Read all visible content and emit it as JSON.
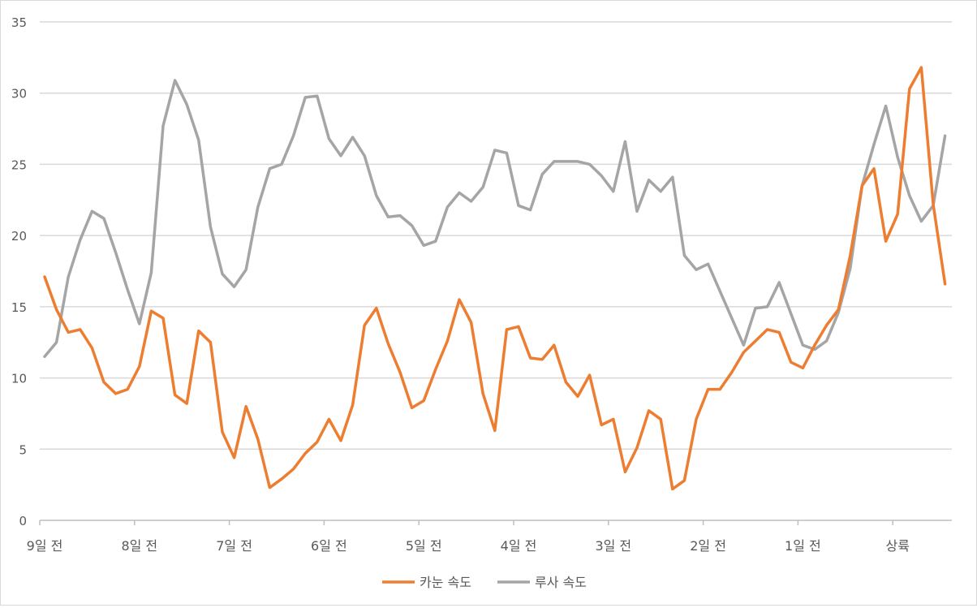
{
  "chart_data": {
    "type": "line",
    "title": "",
    "xlabel": "",
    "ylabel": "",
    "ylim": [
      0,
      35
    ],
    "yticks": [
      0,
      5,
      10,
      15,
      20,
      25,
      30,
      35
    ],
    "grid": true,
    "legend_position": "bottom",
    "x_tick_labels": [
      "9일 전",
      "8일 전",
      "7일 전",
      "6일 전",
      "5일 전",
      "4일 전",
      "3일 전",
      "2일 전",
      "1일 전",
      "상륙"
    ],
    "x_tick_positions": [
      0,
      8,
      16,
      24,
      32,
      40,
      48,
      56,
      64,
      72
    ],
    "series": [
      {
        "name": "카눈 속도",
        "color": "#ed7d31",
        "values": [
          17.1,
          14.8,
          13.2,
          13.4,
          12.1,
          9.7,
          8.9,
          9.2,
          10.8,
          14.7,
          14.2,
          8.8,
          8.2,
          13.3,
          12.5,
          6.2,
          4.4,
          8.0,
          5.7,
          2.3,
          2.9,
          3.6,
          4.7,
          5.5,
          7.1,
          5.6,
          8.1,
          13.7,
          14.9,
          12.4,
          10.4,
          7.9,
          8.4,
          10.6,
          12.6,
          15.5,
          13.9,
          8.9,
          6.3,
          13.4,
          13.6,
          11.4,
          11.3,
          12.3,
          9.7,
          8.7,
          10.2,
          6.7,
          7.1,
          3.4,
          5.1,
          7.7,
          7.1,
          2.2,
          2.8,
          7.1,
          9.2,
          9.2,
          10.4,
          11.8,
          12.6,
          13.4,
          13.2,
          11.1,
          10.7,
          12.3,
          13.7,
          14.8,
          18.6,
          23.5,
          24.7,
          19.6,
          21.5,
          30.3,
          31.8,
          22.2,
          16.6
        ]
      },
      {
        "name": "루사 속도",
        "color": "#a5a5a5",
        "values": [
          11.5,
          12.5,
          17.1,
          19.7,
          21.7,
          21.2,
          18.8,
          16.2,
          13.8,
          17.4,
          27.7,
          30.9,
          29.2,
          26.7,
          20.6,
          17.3,
          16.4,
          17.6,
          22.0,
          24.7,
          25.0,
          27.0,
          29.7,
          29.8,
          26.8,
          25.6,
          26.9,
          25.6,
          22.8,
          21.3,
          21.4,
          20.7,
          19.3,
          19.6,
          22.0,
          23.0,
          22.4,
          23.4,
          26.0,
          25.8,
          22.1,
          21.8,
          24.3,
          25.2,
          25.2,
          25.2,
          25.0,
          24.2,
          23.1,
          26.6,
          21.7,
          23.9,
          23.1,
          24.1,
          18.6,
          17.6,
          18.0,
          16.1,
          14.2,
          12.3,
          14.9,
          15.0,
          16.7,
          14.5,
          12.3,
          12.0,
          12.6,
          14.6,
          17.7,
          23.5,
          26.4,
          29.1,
          25.5,
          22.8,
          21.0,
          22.1,
          27.0
        ]
      }
    ]
  }
}
